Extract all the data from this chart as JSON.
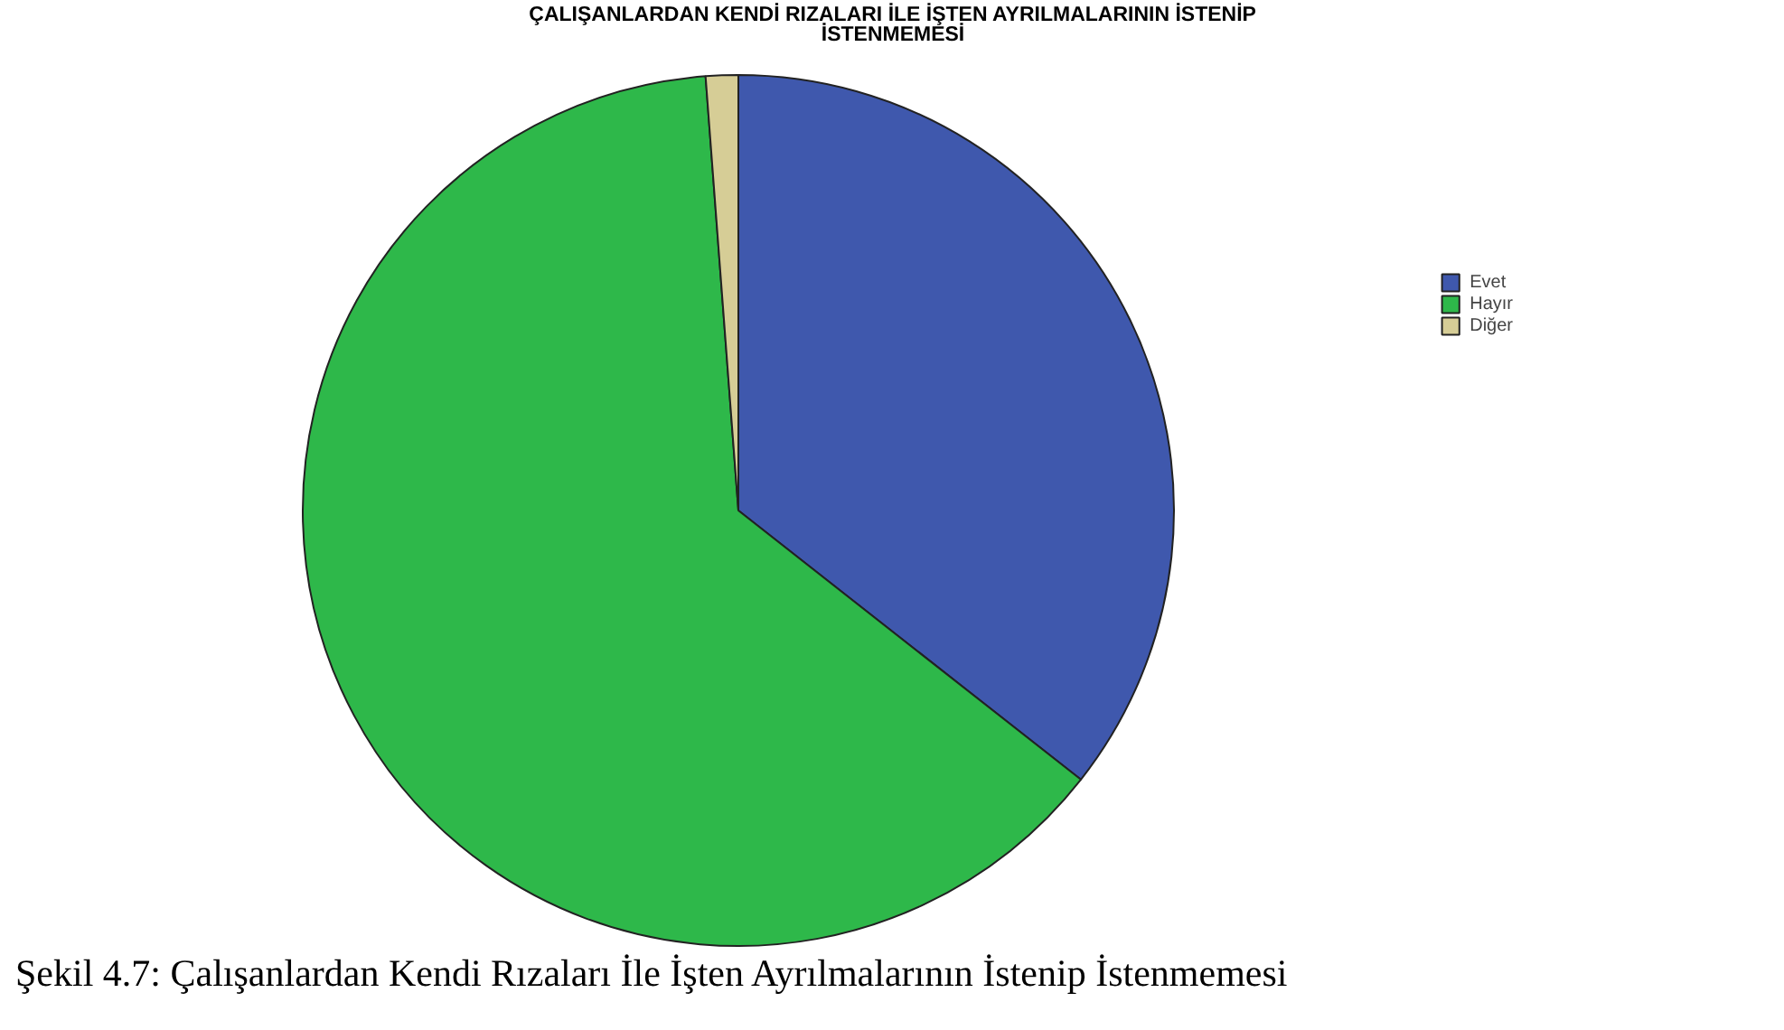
{
  "chart_data": {
    "type": "pie",
    "title": "ÇALIŞANLARDAN KENDİ RIZALARI İLE İŞTEN AYRILMALARININ İSTENİP İSTENMEMESİ",
    "categories": [
      "Evet",
      "Hayır",
      "Diğer"
    ],
    "values": [
      35.6,
      63.2,
      1.2
    ],
    "colors": [
      "#3f58ad",
      "#2eb84a",
      "#d6cd96"
    ],
    "legend": "top right",
    "annotations": [
      "Şekil 4.7: Çalışanlardan Kendi Rızaları İle İşten Ayrılmalarının İstenip İstenmemesi"
    ]
  }
}
